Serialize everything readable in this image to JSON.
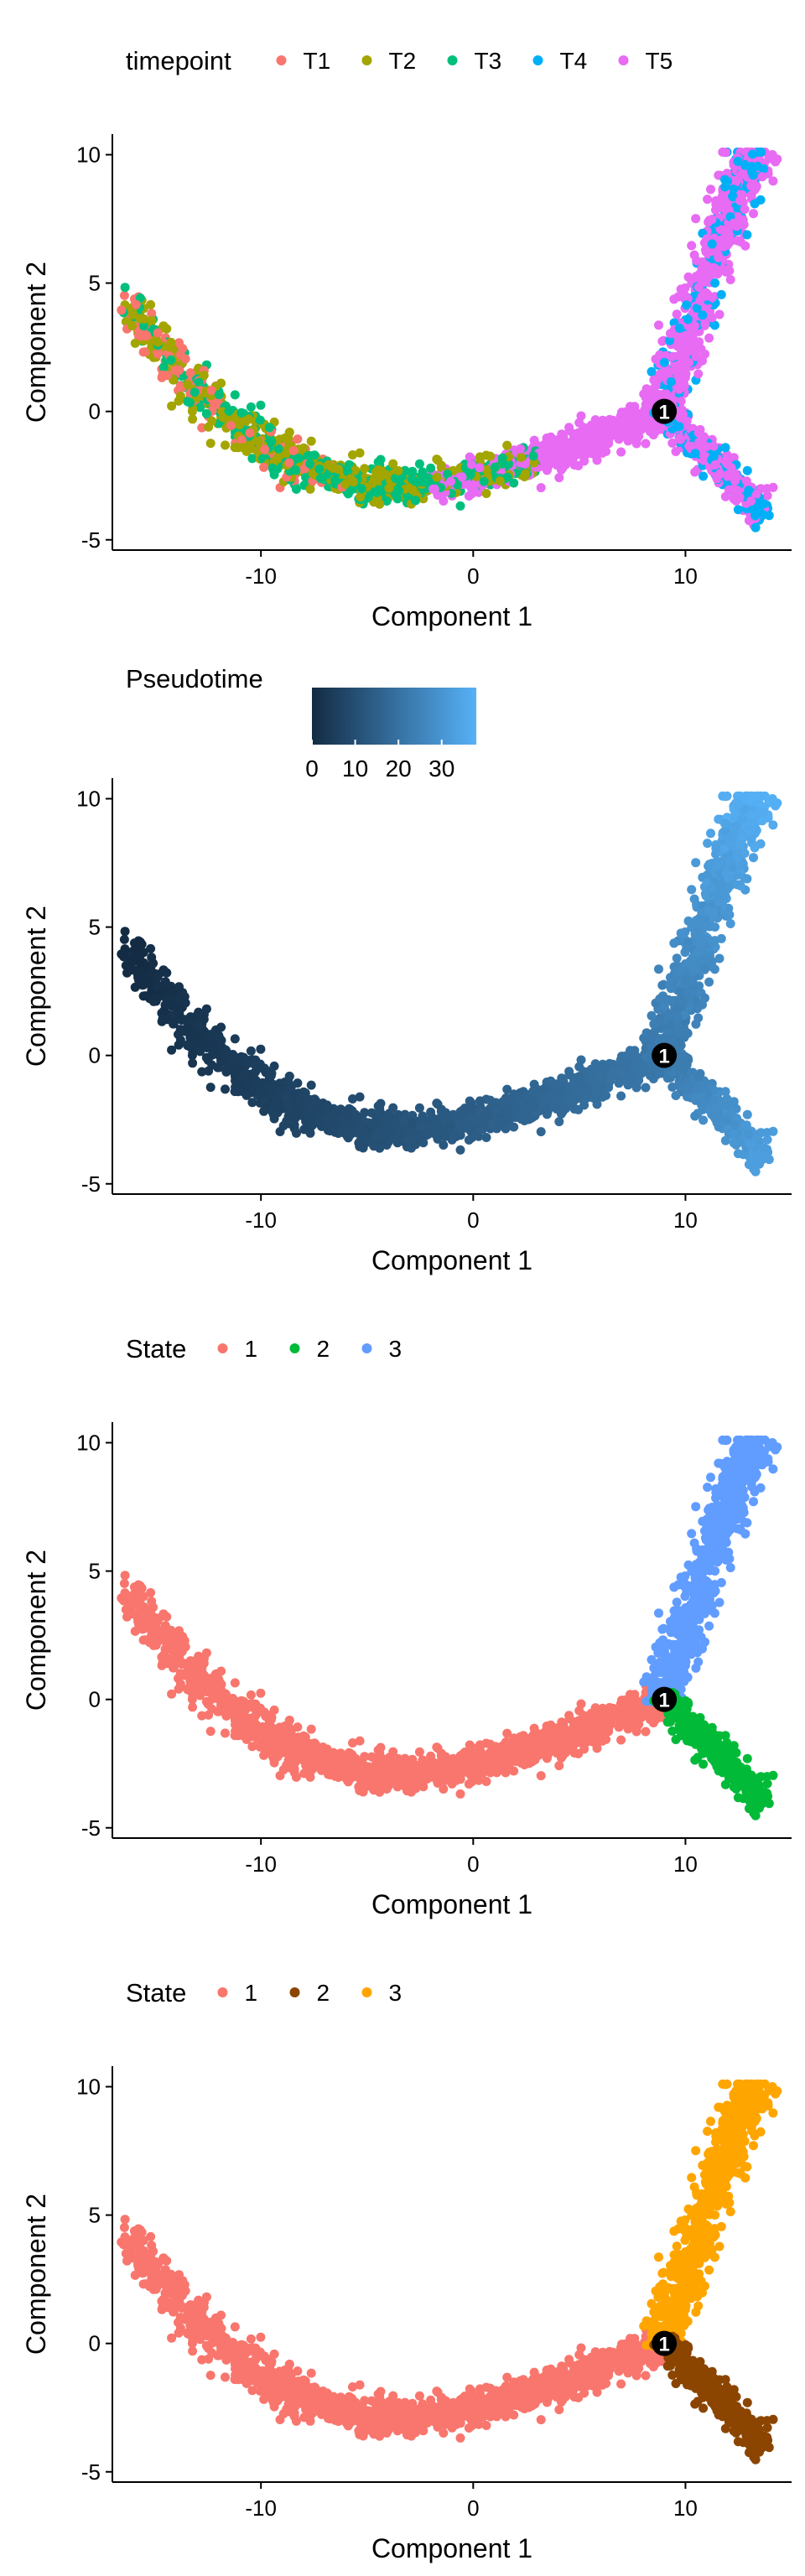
{
  "chart_data": [
    {
      "type": "scatter",
      "xlabel": "Component 1",
      "ylabel": "Component 2",
      "xlim": [
        -17,
        15
      ],
      "ylim": [
        -5.4,
        10.8
      ],
      "xticks": [
        -10,
        0,
        10
      ],
      "yticks": [
        -5,
        0,
        5,
        10
      ],
      "legend": {
        "title": "timepoint",
        "placement": "top",
        "kind": "categorical"
      },
      "series": [
        {
          "name": "T1",
          "color": "#F8766D",
          "region": "early",
          "points": [
            [
              -16.2,
              3.9
            ],
            [
              -15.5,
              3.3
            ],
            [
              -14.8,
              2.6
            ],
            [
              -13.9,
              1.9
            ],
            [
              -13.0,
              1.1
            ],
            [
              -12.0,
              0.3
            ]
          ]
        },
        {
          "name": "T2",
          "color": "#A3A500",
          "region": "early",
          "points": [
            [
              -15.0,
              3.0
            ],
            [
              -13.5,
              1.6
            ],
            [
              -12.5,
              0.8
            ],
            [
              -11.0,
              -0.3
            ],
            [
              -9.0,
              -1.5
            ],
            [
              -7.0,
              -2.3
            ],
            [
              -4.0,
              -2.7
            ],
            [
              -1.0,
              -2.6
            ],
            [
              2.0,
              -2.3
            ]
          ]
        },
        {
          "name": "T3",
          "color": "#00BF7D",
          "region": "middle",
          "points": [
            [
              -10.0,
              -1.0
            ],
            [
              -8.0,
              -2.0
            ],
            [
              -6.0,
              -2.6
            ],
            [
              -4.0,
              -3.0
            ],
            [
              -2.0,
              -2.8
            ],
            [
              0.0,
              -2.5
            ],
            [
              2.0,
              -2.2
            ]
          ]
        },
        {
          "name": "T4",
          "color": "#00B0F6",
          "region": "branches",
          "points": [
            [
              12.0,
              6.0
            ],
            [
              13.0,
              7.5
            ],
            [
              13.5,
              9.5
            ],
            [
              12.5,
              4.0
            ],
            [
              12.0,
              -2.0
            ],
            [
              13.0,
              -3.0
            ],
            [
              13.5,
              -3.5
            ]
          ]
        },
        {
          "name": "T5",
          "color": "#E76BF3",
          "region": "late",
          "points": [
            [
              -2.0,
              -1.7
            ],
            [
              0.0,
              -1.3
            ],
            [
              2.0,
              -1.0
            ],
            [
              4.0,
              -0.6
            ],
            [
              6.0,
              -0.3
            ],
            [
              8.0,
              0.0
            ],
            [
              10.0,
              2.5
            ],
            [
              11.0,
              4.5
            ],
            [
              12.0,
              6.5
            ],
            [
              13.0,
              8.5
            ],
            [
              13.5,
              10.0
            ],
            [
              10.0,
              -1.0
            ],
            [
              12.0,
              -2.5
            ],
            [
              13.5,
              -3.5
            ]
          ]
        }
      ],
      "branch_point": {
        "label": "1",
        "x": 9,
        "y": 0
      }
    },
    {
      "type": "scatter",
      "xlabel": "Component 1",
      "ylabel": "Component 2",
      "xlim": [
        -17,
        15
      ],
      "ylim": [
        -5.4,
        10.8
      ],
      "xticks": [
        -10,
        0,
        10
      ],
      "yticks": [
        -5,
        0,
        5,
        10
      ],
      "legend": {
        "title": "Pseudotime",
        "placement": "top",
        "kind": "continuous",
        "range": [
          0,
          38
        ],
        "ticks": [
          0,
          10,
          20,
          30
        ],
        "low_color": "#132B43",
        "high_color": "#56B1F7"
      },
      "color_by": "pseudotime",
      "branch_point": {
        "label": "1",
        "x": 9,
        "y": 0
      }
    },
    {
      "type": "scatter",
      "xlabel": "Component 1",
      "ylabel": "Component 2",
      "xlim": [
        -17,
        15
      ],
      "ylim": [
        -5.4,
        10.8
      ],
      "xticks": [
        -10,
        0,
        10
      ],
      "yticks": [
        -5,
        0,
        5,
        10
      ],
      "legend": {
        "title": "State",
        "placement": "top",
        "kind": "categorical"
      },
      "series": [
        {
          "name": "1",
          "color": "#F8766D",
          "region": "trunk"
        },
        {
          "name": "2",
          "color": "#00BA38",
          "region": "lower-branch"
        },
        {
          "name": "3",
          "color": "#619CFF",
          "region": "upper-branch"
        }
      ],
      "branch_point": {
        "label": "1",
        "x": 9,
        "y": 0
      }
    },
    {
      "type": "scatter",
      "xlabel": "Component 1",
      "ylabel": "Component 2",
      "xlim": [
        -17,
        15
      ],
      "ylim": [
        -5.4,
        10.8
      ],
      "xticks": [
        -10,
        0,
        10
      ],
      "yticks": [
        -5,
        0,
        5,
        10
      ],
      "legend": {
        "title": "State",
        "placement": "top",
        "kind": "categorical"
      },
      "series": [
        {
          "name": "1",
          "color": "#F8766D",
          "region": "trunk"
        },
        {
          "name": "2",
          "color": "#8B4500",
          "region": "lower-branch"
        },
        {
          "name": "3",
          "color": "#FFA500",
          "region": "upper-branch"
        }
      ],
      "branch_point": {
        "label": "1",
        "x": 9,
        "y": 0
      }
    }
  ]
}
